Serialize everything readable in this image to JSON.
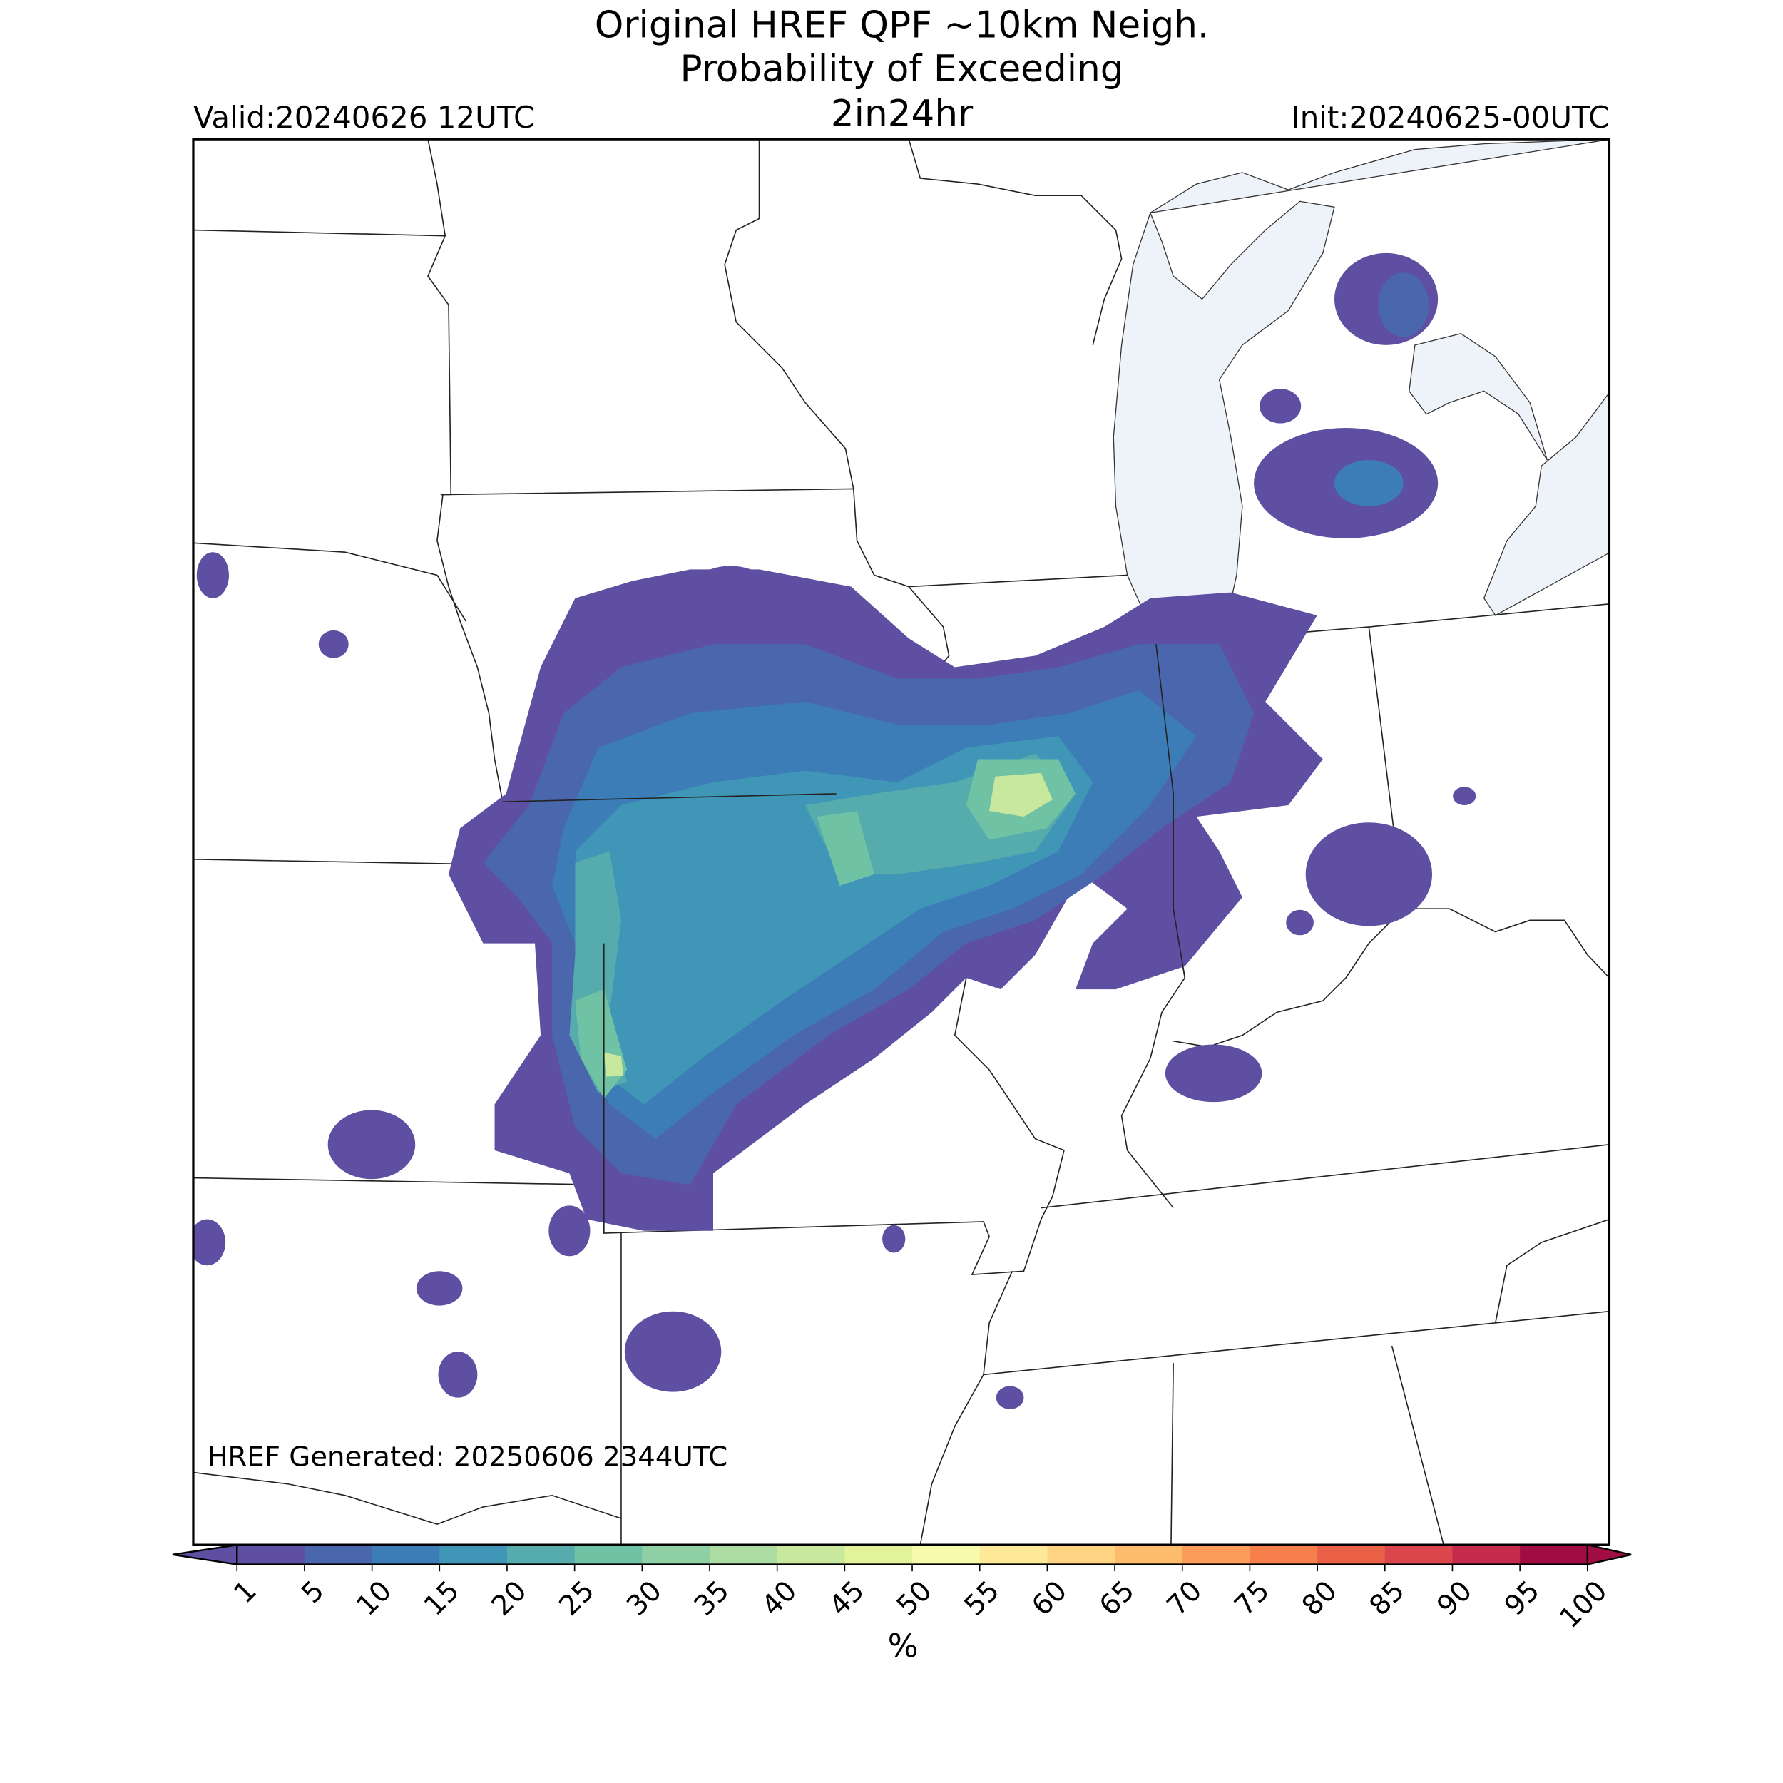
{
  "title": [
    "Original HREF QPF ~10km Neigh.",
    "Probability of Exceeding",
    "2in24hr"
  ],
  "valid": "Valid:20240626 12UTC",
  "init": "Init:20240625-00UTC",
  "generated": "HREF Generated: 20250606 2344UTC",
  "colorbar": {
    "ticks": [
      1,
      5,
      10,
      15,
      20,
      25,
      30,
      35,
      40,
      45,
      50,
      55,
      60,
      65,
      70,
      75,
      80,
      85,
      90,
      95,
      100
    ],
    "colors": [
      "#5e4fa2",
      "#4a66ac",
      "#3c7db8",
      "#3f96b7",
      "#56acad",
      "#70c2a5",
      "#8ed0a4",
      "#acdca2",
      "#c8e89e",
      "#e2f399",
      "#f6faaa",
      "#fee999",
      "#fed482",
      "#fdbb6c",
      "#fc9c5a",
      "#f67f4c",
      "#ea6047",
      "#da464c",
      "#c52a4d",
      "#a10d43"
    ],
    "label": "%"
  }
}
